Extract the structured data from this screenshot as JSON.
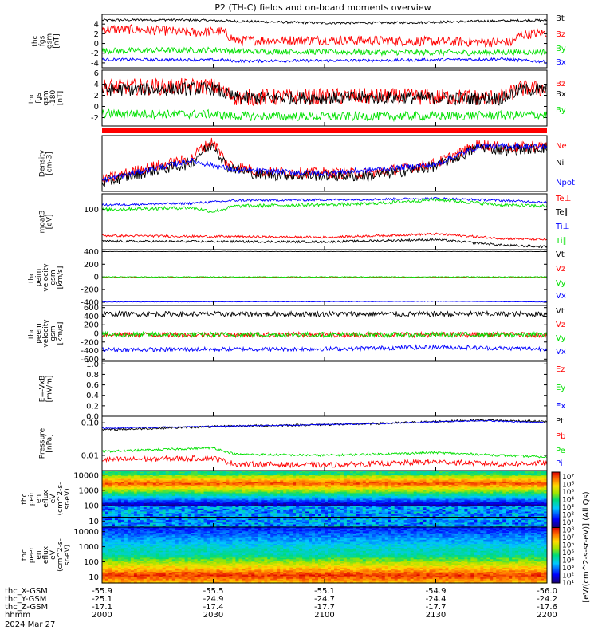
{
  "title": "P2 (TH-C) fields and on-board moments overview",
  "colors": {
    "black": "#000000",
    "red": "#ff0000",
    "green": "#00e000",
    "blue": "#0000ff",
    "darkred": "#8b0000"
  },
  "chart_data": [
    {
      "type": "line",
      "ylabel": [
        "thc",
        "fgs",
        "gsm",
        "[nT]"
      ],
      "yrange": [
        -5,
        6
      ],
      "ticks": [
        "4",
        "2",
        "0",
        "-2",
        "-4"
      ],
      "tickvals": [
        4,
        2,
        0,
        -2,
        -4
      ],
      "series": [
        {
          "name": "Bt",
          "color": "black",
          "points": [
            [
              0,
              4.8
            ],
            [
              0.15,
              4.9
            ],
            [
              0.27,
              4.7
            ],
            [
              0.3,
              4.6
            ],
            [
              0.5,
              4.2
            ],
            [
              0.7,
              4.3
            ],
            [
              0.85,
              4.6
            ],
            [
              1,
              4.8
            ]
          ],
          "noise": 0.25
        },
        {
          "name": "Bz",
          "color": "red",
          "points": [
            [
              0,
              3
            ],
            [
              0.1,
              2.8
            ],
            [
              0.2,
              2.3
            ],
            [
              0.27,
              2.5
            ],
            [
              0.3,
              0.6
            ],
            [
              0.5,
              0.7
            ],
            [
              0.75,
              0.4
            ],
            [
              0.92,
              0.2
            ],
            [
              0.94,
              1.8
            ],
            [
              1,
              2.2
            ]
          ],
          "noise": 1.0
        },
        {
          "name": "By",
          "color": "green",
          "points": [
            [
              0,
              -1.5
            ],
            [
              0.27,
              -1.3
            ],
            [
              0.3,
              -1.6
            ],
            [
              0.6,
              -1.8
            ],
            [
              0.85,
              -1.9
            ],
            [
              1,
              -1.7
            ]
          ],
          "noise": 0.6
        },
        {
          "name": "Bx",
          "color": "blue",
          "points": [
            [
              0,
              -3.3
            ],
            [
              0.27,
              -3.4
            ],
            [
              0.3,
              -3.6
            ],
            [
              0.6,
              -3.5
            ],
            [
              0.9,
              -3.2
            ],
            [
              1,
              -3.8
            ]
          ],
          "noise": 0.3
        }
      ]
    },
    {
      "type": "line",
      "ylabel": [
        "thc",
        "fgs",
        "gsm",
        "-180",
        "[nT]"
      ],
      "yrange": [
        -3.5,
        6.5
      ],
      "ticks": [
        "6",
        "4",
        "2",
        "0",
        "-2"
      ],
      "tickvals": [
        6,
        4,
        2,
        0,
        -2
      ],
      "series": [
        {
          "name": "Bz",
          "color": "red",
          "points": [
            [
              0,
              3.5
            ],
            [
              0.25,
              3.6
            ],
            [
              0.3,
              1.6
            ],
            [
              0.6,
              1.8
            ],
            [
              0.9,
              1.6
            ],
            [
              0.94,
              3.2
            ],
            [
              1,
              3.2
            ]
          ],
          "noise": 1.5
        },
        {
          "name": "Bx",
          "color": "black",
          "points": [
            [
              0,
              3
            ],
            [
              0.25,
              3.2
            ],
            [
              0.3,
              1.5
            ],
            [
              0.6,
              1.6
            ],
            [
              0.9,
              1.4
            ],
            [
              0.94,
              3
            ],
            [
              1,
              3
            ]
          ],
          "noise": 1.2
        },
        {
          "name": "By",
          "color": "green",
          "points": [
            [
              0,
              -1.3
            ],
            [
              0.25,
              -1.4
            ],
            [
              0.3,
              -1.8
            ],
            [
              0.6,
              -1.8
            ],
            [
              0.9,
              -1.6
            ],
            [
              1,
              -1.5
            ]
          ],
          "noise": 0.8
        }
      ]
    },
    {
      "type": "line",
      "ylabel": [
        "Density",
        "[cm-3]"
      ],
      "yrange": [
        0,
        1
      ],
      "ticks": [],
      "tickvals": [],
      "series": [
        {
          "name": "Ne",
          "color": "red",
          "points": [
            [
              0,
              0.2
            ],
            [
              0.1,
              0.42
            ],
            [
              0.2,
              0.58
            ],
            [
              0.22,
              0.75
            ],
            [
              0.25,
              0.9
            ],
            [
              0.28,
              0.5
            ],
            [
              0.35,
              0.35
            ],
            [
              0.6,
              0.32
            ],
            [
              0.75,
              0.5
            ],
            [
              0.85,
              0.85
            ],
            [
              0.9,
              0.78
            ],
            [
              1,
              0.82
            ]
          ],
          "noise": 0.1
        },
        {
          "name": "Ni",
          "color": "black",
          "points": [
            [
              0,
              0.15
            ],
            [
              0.1,
              0.35
            ],
            [
              0.2,
              0.5
            ],
            [
              0.22,
              0.68
            ],
            [
              0.25,
              0.85
            ],
            [
              0.28,
              0.45
            ],
            [
              0.35,
              0.3
            ],
            [
              0.6,
              0.27
            ],
            [
              0.75,
              0.45
            ],
            [
              0.85,
              0.8
            ],
            [
              0.9,
              0.74
            ],
            [
              1,
              0.78
            ]
          ],
          "noise": 0.1
        },
        {
          "name": "Npot",
          "color": "blue",
          "points": [
            [
              0,
              0.2
            ],
            [
              0.1,
              0.38
            ],
            [
              0.2,
              0.55
            ],
            [
              0.3,
              0.38
            ],
            [
              0.5,
              0.32
            ],
            [
              0.75,
              0.48
            ],
            [
              0.85,
              0.82
            ],
            [
              1,
              0.8
            ]
          ],
          "noise": 0.05
        }
      ]
    },
    {
      "type": "line",
      "ylabel": [
        "moat3",
        "[eV]"
      ],
      "yrange": [
        0,
        1
      ],
      "ticks": [
        "100"
      ],
      "tickvals": [
        0.72
      ],
      "series": [
        {
          "name": "Te⊥",
          "color": "red",
          "points": [
            [
              0,
              0.25
            ],
            [
              0.5,
              0.22
            ],
            [
              0.75,
              0.28
            ],
            [
              0.9,
              0.2
            ],
            [
              1,
              0.18
            ]
          ],
          "noise": 0.02
        },
        {
          "name": "Te∥",
          "color": "black",
          "points": [
            [
              0,
              0.15
            ],
            [
              0.5,
              0.14
            ],
            [
              0.75,
              0.18
            ],
            [
              0.9,
              0.08
            ],
            [
              1,
              0.05
            ]
          ],
          "noise": 0.02
        },
        {
          "name": "Ti⊥",
          "color": "blue",
          "points": [
            [
              0,
              0.8
            ],
            [
              0.2,
              0.83
            ],
            [
              0.3,
              0.88
            ],
            [
              0.6,
              0.9
            ],
            [
              0.75,
              0.92
            ],
            [
              0.9,
              0.88
            ],
            [
              1,
              0.85
            ]
          ],
          "noise": 0.02
        },
        {
          "name": "Ti∥",
          "color": "green",
          "points": [
            [
              0,
              0.72
            ],
            [
              0.2,
              0.75
            ],
            [
              0.25,
              0.68
            ],
            [
              0.3,
              0.78
            ],
            [
              0.6,
              0.82
            ],
            [
              0.75,
              0.9
            ],
            [
              0.9,
              0.8
            ],
            [
              1,
              0.78
            ]
          ],
          "noise": 0.03
        }
      ]
    },
    {
      "type": "line",
      "ylabel": [
        "thc",
        "peim",
        "velocity",
        "gsm",
        "[km/s]"
      ],
      "yrange": [
        -450,
        430
      ],
      "ticks": [
        "400",
        "200",
        "0",
        "-200",
        "-400"
      ],
      "tickvals": [
        400,
        200,
        0,
        -200,
        -400
      ],
      "series": [
        {
          "name": "Vt",
          "color": "black",
          "points": [
            [
              0,
              400
            ],
            [
              1,
              400
            ]
          ],
          "noise": 2
        },
        {
          "name": "Vz",
          "color": "red",
          "points": [
            [
              0,
              -10
            ],
            [
              1,
              -10
            ]
          ],
          "noise": 6
        },
        {
          "name": "Vy",
          "color": "green",
          "points": [
            [
              0,
              0
            ],
            [
              1,
              0
            ]
          ],
          "noise": 6
        },
        {
          "name": "Vx",
          "color": "blue",
          "points": [
            [
              0,
              -395
            ],
            [
              0.5,
              -390
            ],
            [
              0.75,
              -385
            ],
            [
              1,
              -395
            ]
          ],
          "noise": 4
        }
      ]
    },
    {
      "type": "line",
      "ylabel": [
        "thc",
        "peem",
        "velocity",
        "gsm",
        "[km/s]"
      ],
      "yrange": [
        -650,
        650
      ],
      "ticks": [
        "600",
        "400",
        "200",
        "0",
        "-200",
        "-400",
        "-600"
      ],
      "tickvals": [
        600,
        400,
        200,
        0,
        -200,
        -400,
        -600
      ],
      "series": [
        {
          "name": "Vt",
          "color": "black",
          "points": [
            [
              0,
              450
            ],
            [
              1,
              450
            ]
          ],
          "noise": 60
        },
        {
          "name": "Vz",
          "color": "red",
          "points": [
            [
              0,
              -30
            ],
            [
              1,
              -30
            ]
          ],
          "noise": 60
        },
        {
          "name": "Vy",
          "color": "green",
          "points": [
            [
              0,
              -30
            ],
            [
              1,
              -30
            ]
          ],
          "noise": 60
        },
        {
          "name": "Vx",
          "color": "blue",
          "points": [
            [
              0,
              -380
            ],
            [
              0.5,
              -360
            ],
            [
              0.75,
              -320
            ],
            [
              1,
              -360
            ]
          ],
          "noise": 50
        }
      ]
    },
    {
      "type": "line",
      "ylabel": [
        "E=-VxB",
        "[mV/m]"
      ],
      "yrange": [
        0,
        1.05
      ],
      "ticks": [
        "1.0",
        "0.8",
        "0.6",
        "0.4",
        "0.2",
        "0.0"
      ],
      "tickvals": [
        1.0,
        0.8,
        0.6,
        0.4,
        0.2,
        0.0
      ],
      "series": [
        {
          "name": "Ez",
          "color": "red",
          "points": []
        },
        {
          "name": "Ey",
          "color": "green",
          "points": []
        },
        {
          "name": "Ex",
          "color": "blue",
          "points": []
        }
      ]
    },
    {
      "type": "line",
      "ylabel": [
        "Pressure",
        "[nPa]"
      ],
      "yrange": [
        0,
        1
      ],
      "ticks": [
        "0.10",
        "0.01"
      ],
      "tickvals": [
        0.88,
        0.28
      ],
      "series": [
        {
          "name": "Pt",
          "color": "black",
          "points": [
            [
              0,
              0.75
            ],
            [
              0.3,
              0.82
            ],
            [
              0.6,
              0.86
            ],
            [
              0.85,
              0.93
            ],
            [
              1,
              0.9
            ]
          ],
          "noise": 0.02
        },
        {
          "name": "Pb",
          "color": "red",
          "points": [
            [
              0,
              0.2
            ],
            [
              0.25,
              0.23
            ],
            [
              0.3,
              0.12
            ],
            [
              0.5,
              0.1
            ],
            [
              0.75,
              0.16
            ],
            [
              0.9,
              0.12
            ],
            [
              1,
              0.14
            ]
          ],
          "noise": 0.05
        },
        {
          "name": "Pe",
          "color": "green",
          "points": [
            [
              0,
              0.35
            ],
            [
              0.25,
              0.42
            ],
            [
              0.3,
              0.3
            ],
            [
              0.5,
              0.28
            ],
            [
              0.75,
              0.33
            ],
            [
              0.9,
              0.28
            ],
            [
              1,
              0.25
            ]
          ],
          "noise": 0.02
        },
        {
          "name": "Pi",
          "color": "blue",
          "points": [
            [
              0,
              0.78
            ],
            [
              0.3,
              0.82
            ],
            [
              0.6,
              0.86
            ],
            [
              0.85,
              0.92
            ],
            [
              1,
              0.88
            ]
          ],
          "noise": 0.01
        }
      ]
    },
    {
      "type": "heatmap",
      "ylabel": [
        "thc",
        "peir",
        "en",
        "eflux",
        "eV",
        "(cm^2-s-",
        "sr-eV)"
      ],
      "ticks": [
        "10000",
        "1000",
        "100",
        "10"
      ],
      "tickvals": [
        4,
        3,
        2,
        1
      ],
      "yrange": [
        0.6,
        4.3
      ],
      "band": "ion"
    },
    {
      "type": "heatmap",
      "ylabel": [
        "thc",
        "peer",
        "en",
        "eflux",
        "eV",
        "(cm^2-s-",
        "sr-eV)"
      ],
      "ticks": [
        "10000",
        "1000",
        "100",
        "10"
      ],
      "tickvals": [
        4,
        3,
        2,
        1
      ],
      "yrange": [
        0.6,
        4.3
      ],
      "band": "electron"
    }
  ],
  "colorbar": {
    "labels": [
      "10⁷",
      "10⁶",
      "10⁵",
      "10⁴",
      "10³",
      "10²",
      "10¹",
      "10⁸",
      "10⁷",
      "10⁶",
      "10⁵",
      "10⁴",
      "10³",
      "10²",
      "10¹"
    ],
    "title": "[eV/(cm^2-s-sr-eV)] (All Qs)"
  },
  "xaxis": {
    "rows": [
      {
        "label": "thc_X-GSM",
        "values": [
          "-55.9",
          "-55.5",
          "-55.1",
          "-54.9",
          "-56.0"
        ]
      },
      {
        "label": "thc_Y-GSM",
        "values": [
          "-25.1",
          "-24.9",
          "-24.7",
          "-24.4",
          "-24.2"
        ]
      },
      {
        "label": "thc_Z-GSM",
        "values": [
          "-17.1",
          "-17.4",
          "-17.7",
          "-17.7",
          "-17.6"
        ]
      },
      {
        "label": "hhmm",
        "values": [
          "2000",
          "2030",
          "2100",
          "2130",
          "2200"
        ]
      }
    ],
    "date": "2024 Mar 27"
  }
}
